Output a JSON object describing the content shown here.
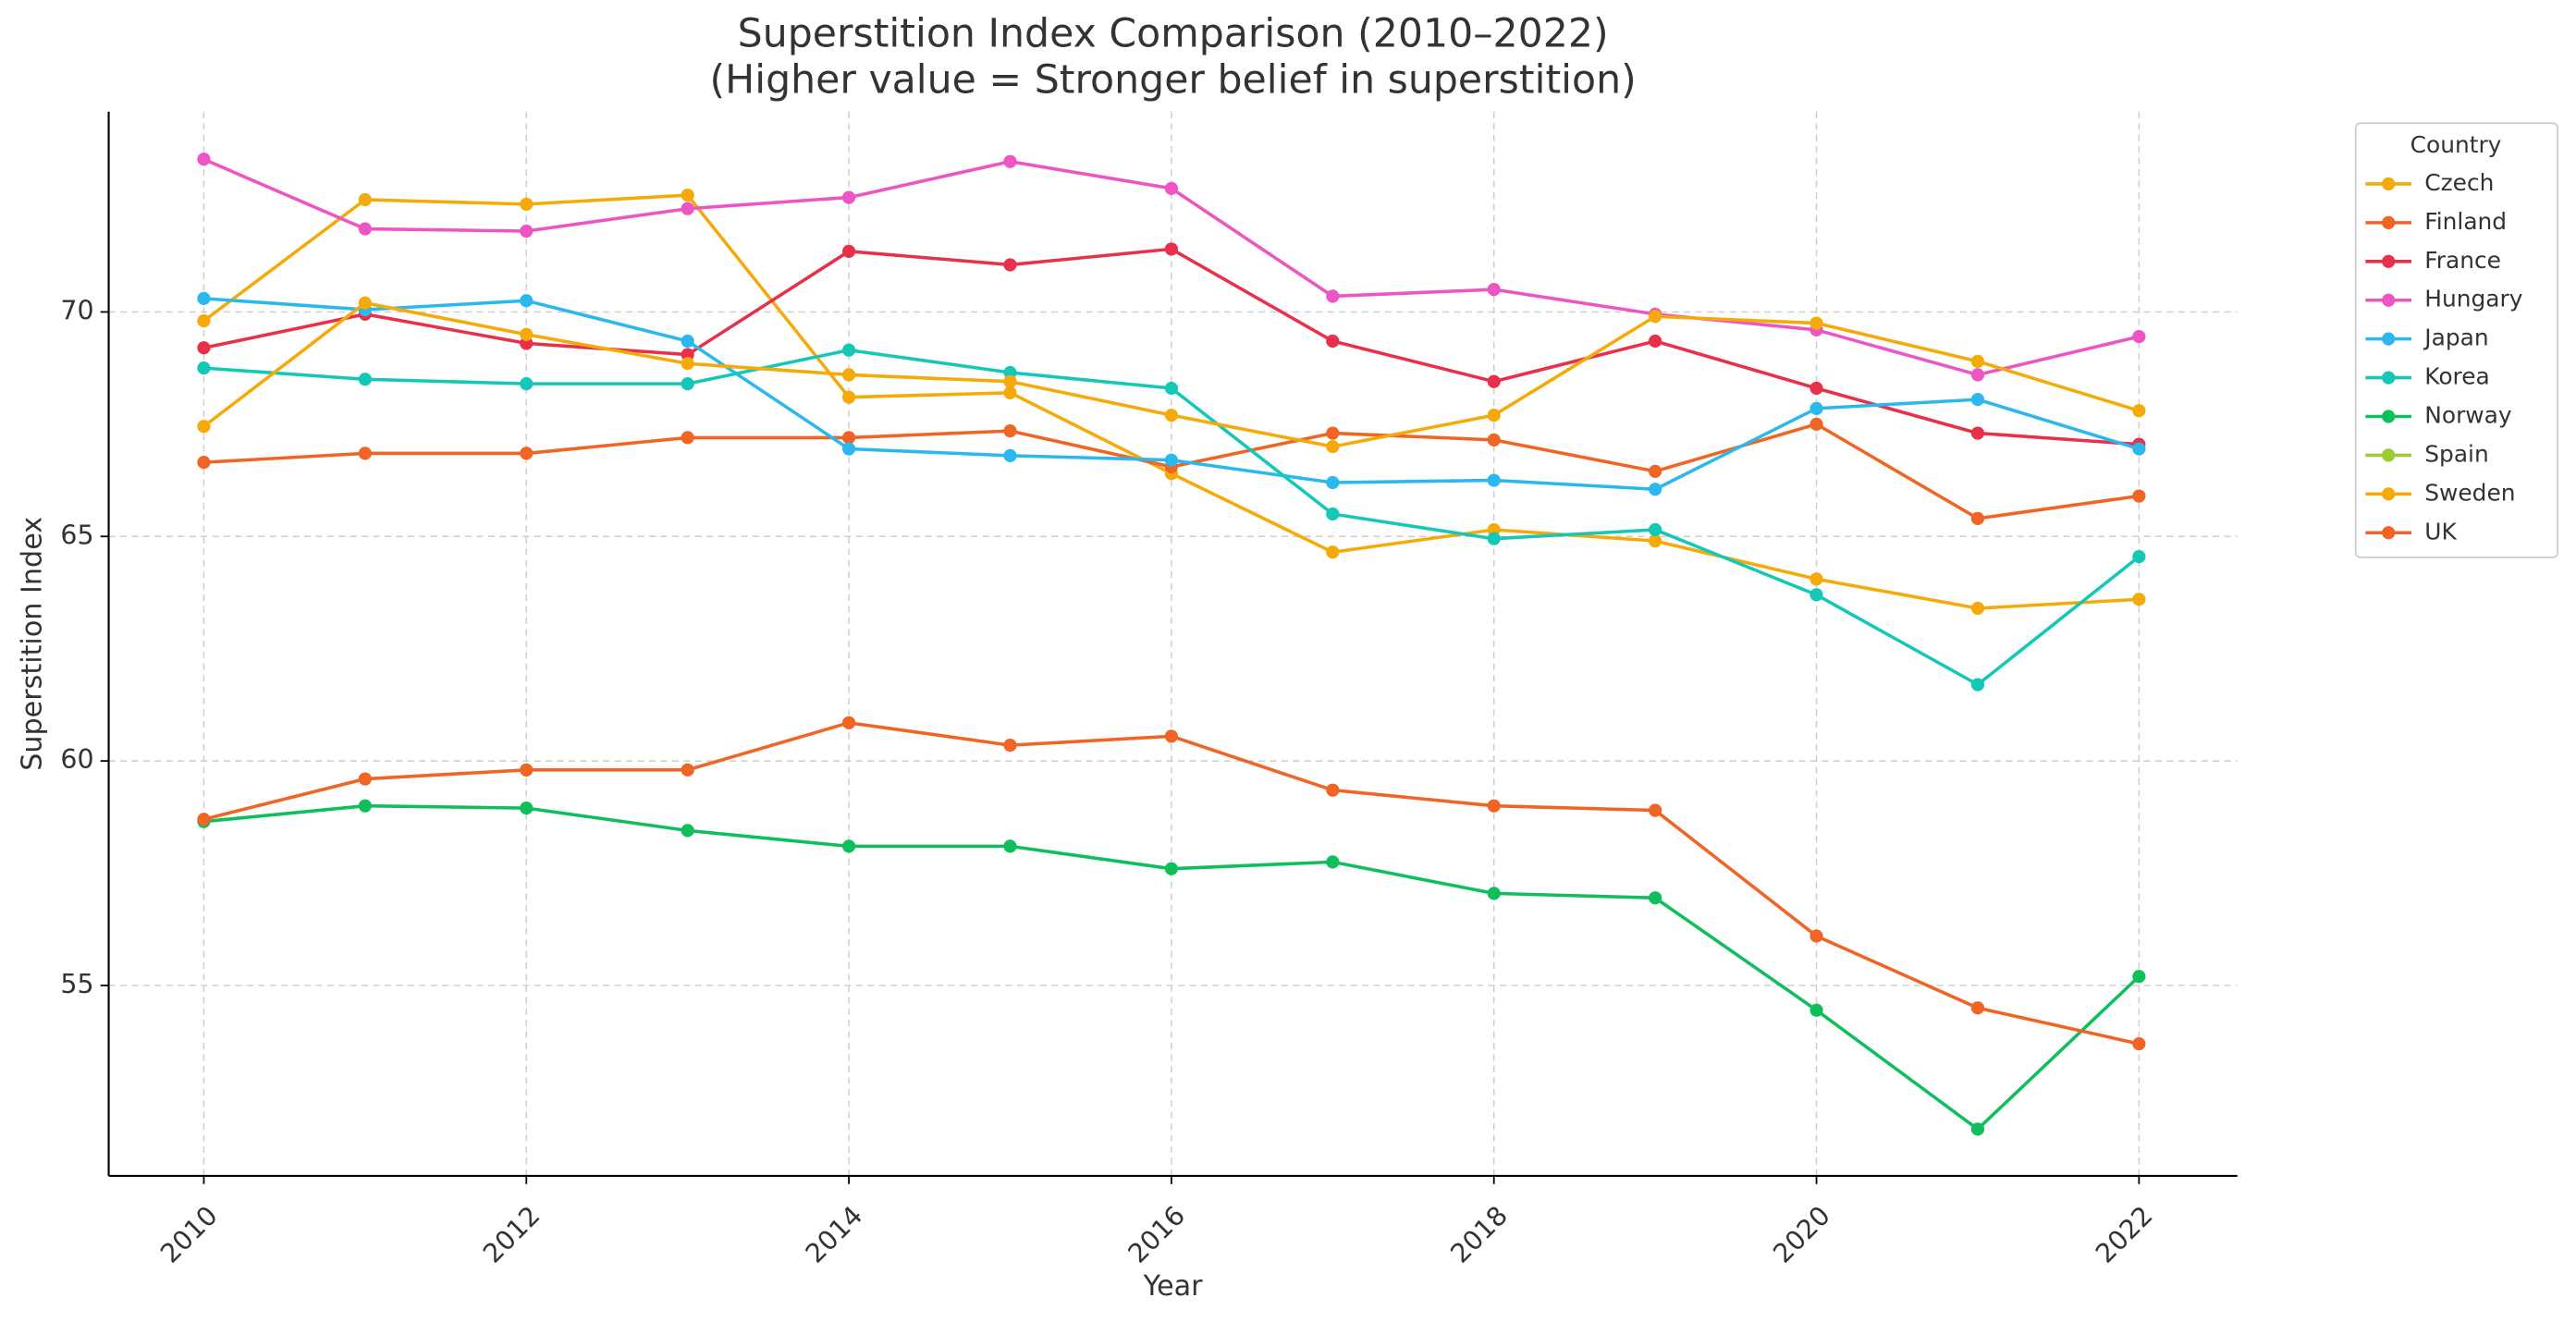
{
  "chart_data": {
    "type": "line",
    "title": [
      "Superstition Index Comparison (2010–2022)",
      "(Higher value = Stronger belief in superstition)"
    ],
    "xlabel": "Year",
    "ylabel": "Superstition Index",
    "x": [
      2010,
      2011,
      2012,
      2013,
      2014,
      2015,
      2016,
      2017,
      2018,
      2019,
      2020,
      2021,
      2022
    ],
    "xlim": [
      2009.41,
      2022.61
    ],
    "xticks": [
      2010,
      2012,
      2014,
      2016,
      2018,
      2020,
      2022
    ],
    "ylim": [
      50.76,
      74.46
    ],
    "yticks": [
      55,
      60,
      65,
      70
    ],
    "grid": true,
    "legend_title": "Country",
    "legend": "outside upper right",
    "series": [
      {
        "name": "Czech",
        "color": "#f5aa0a",
        "values": [
          69.8,
          72.5,
          72.4,
          72.6,
          68.1,
          68.2,
          66.4,
          64.65,
          65.15,
          64.9,
          64.05,
          63.4,
          63.6
        ]
      },
      {
        "name": "Finland",
        "color": "#f06424",
        "values": [
          66.65,
          66.85,
          66.85,
          67.2,
          67.2,
          67.35,
          66.55,
          67.3,
          67.15,
          66.45,
          67.5,
          65.4,
          65.9
        ]
      },
      {
        "name": "France",
        "color": "#e8304a",
        "values": [
          69.2,
          69.95,
          69.3,
          69.05,
          71.35,
          71.05,
          71.4,
          69.35,
          68.45,
          69.35,
          68.3,
          67.3,
          67.05
        ]
      },
      {
        "name": "Hungary",
        "color": "#ee55c4",
        "values": [
          73.4,
          71.85,
          71.8,
          72.3,
          72.55,
          73.35,
          72.75,
          70.35,
          70.5,
          69.95,
          69.6,
          68.6,
          69.45
        ]
      },
      {
        "name": "Japan",
        "color": "#2bb8ee",
        "values": [
          70.3,
          70.05,
          70.25,
          69.35,
          66.95,
          66.8,
          66.7,
          66.2,
          66.25,
          66.05,
          67.85,
          68.05,
          66.95
        ]
      },
      {
        "name": "Korea",
        "color": "#14c8b8",
        "values": [
          68.75,
          68.5,
          68.4,
          68.4,
          69.15,
          68.65,
          68.3,
          65.5,
          64.95,
          65.15,
          63.7,
          61.7,
          64.55
        ]
      },
      {
        "name": "Norway",
        "color": "#0fbf5c",
        "values": [
          58.65,
          59.0,
          58.95,
          58.45,
          58.1,
          58.1,
          57.6,
          57.75,
          57.05,
          56.95,
          54.45,
          51.8,
          55.2
        ]
      },
      {
        "name": "Spain",
        "color": "#9acd32",
        "values": [
          null,
          null,
          null,
          null,
          null,
          null,
          null,
          null,
          null,
          null,
          null,
          null,
          null
        ]
      },
      {
        "name": "Sweden",
        "color": "#f5aa0a",
        "values": [
          67.45,
          70.2,
          69.5,
          68.85,
          68.6,
          68.45,
          67.7,
          67.0,
          67.7,
          69.9,
          69.75,
          68.9,
          67.8
        ]
      },
      {
        "name": "UK",
        "color": "#f06424",
        "values": [
          58.7,
          59.6,
          59.8,
          59.8,
          60.85,
          60.35,
          60.55,
          59.35,
          59.0,
          58.9,
          56.1,
          54.5,
          53.7
        ]
      }
    ]
  }
}
